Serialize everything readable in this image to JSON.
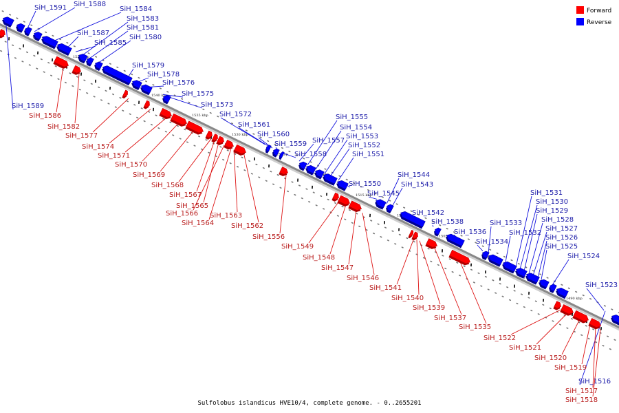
{
  "caption": "Sulfolobus islandicus HVE10/4, complete genome. - 0..2655201",
  "colors": {
    "forward": "#ff0000",
    "forward_dark": "#b00000",
    "forward_line": "#dd1111",
    "reverse": "#0000ff",
    "reverse_dark": "#000090",
    "reverse_line": "#1111dd",
    "backbone": "#888888"
  },
  "legend": [
    {
      "key": "forward",
      "label": "Forward"
    },
    {
      "key": "reverse",
      "label": "Reverse"
    }
  ],
  "scale_ticks": [
    "1555 kbp",
    "1550 kbp",
    "1545 kbp",
    "1540 kbp",
    "1535 kbp",
    "1530 kbp",
    "1525 kbp",
    "1520 kbp",
    "1515 kbp",
    "1510 kbp",
    "1505 kbp",
    "1500 kbp",
    "1495 kbp",
    "1490 kbp"
  ],
  "reverse_genes": [
    "SiH_1591",
    "SiH_1588",
    "SiH_1584",
    "SiH_1583",
    "SiH_1581",
    "SiH_1587",
    "SiH_1580",
    "SiH_1585",
    "SiH_1579",
    "SiH_1578",
    "SiH_1576",
    "SiH_1575",
    "SiH_1573",
    "SiH_1572",
    "SiH_1561",
    "SiH_1560",
    "SiH_1559",
    "SiH_1558",
    "SiH_1557",
    "SiH_1555",
    "SiH_1554",
    "SiH_1553",
    "SiH_1552",
    "SiH_1551",
    "SiH_1550",
    "SiH_1545",
    "SiH_1544",
    "SiH_1543",
    "SiH_1542",
    "SiH_1538",
    "SiH_1536",
    "SiH_1534",
    "SiH_1533",
    "SiH_1532",
    "SiH_1531",
    "SiH_1530",
    "SiH_1529",
    "SiH_1528",
    "SiH_1527",
    "SiH_1526",
    "SiH_1525",
    "SiH_1524",
    "SiH_1523",
    "SiH_1589",
    "SiH_1516"
  ],
  "forward_genes": [
    "SiH_1586",
    "SiH_1582",
    "SiH_1577",
    "SiH_1574",
    "SiH_1571",
    "SiH_1570",
    "SiH_1569",
    "SiH_1568",
    "SiH_1567",
    "SiH_1565",
    "SiH_1566",
    "SiH_1564",
    "SiH_1563",
    "SiH_1562",
    "SiH_1556",
    "SiH_1549",
    "SiH_1548",
    "SiH_1547",
    "SiH_1546",
    "SiH_1541",
    "SiH_1540",
    "SiH_1539",
    "SiH_1537",
    "SiH_1535",
    "SiH_1522",
    "SiH_1521",
    "SiH_1520",
    "SiH_1519",
    "SiH_1517",
    "SiH_1518"
  ]
}
